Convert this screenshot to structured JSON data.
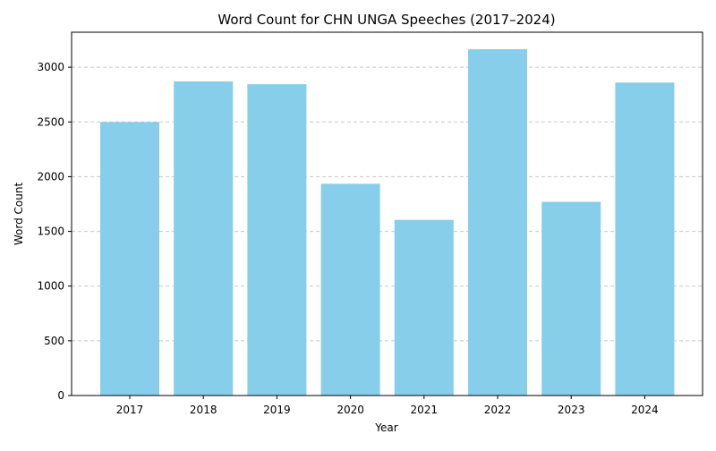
{
  "chart_data": {
    "type": "bar",
    "title": "Word Count for CHN UNGA Speeches (2017–2024)",
    "xlabel": "Year",
    "ylabel": "Word Count",
    "categories": [
      "2017",
      "2018",
      "2019",
      "2020",
      "2021",
      "2022",
      "2023",
      "2024"
    ],
    "values": [
      2500,
      2870,
      2845,
      1935,
      1605,
      3165,
      1770,
      2860
    ],
    "ylim": [
      0,
      3320
    ],
    "yticks": [
      0,
      500,
      1000,
      1500,
      2000,
      2500,
      3000
    ],
    "grid": "y-dashed",
    "bar_color": "#87ceeb",
    "grid_color": "#c8c8c8"
  }
}
